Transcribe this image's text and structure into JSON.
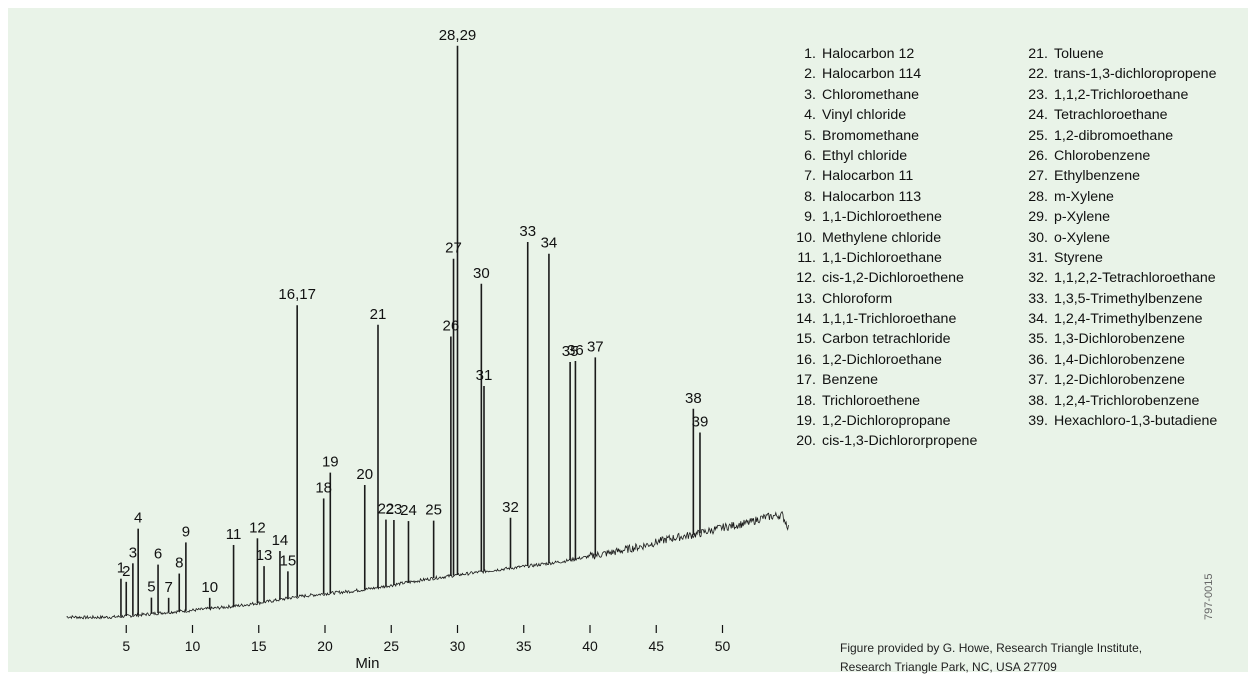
{
  "chart_data": {
    "type": "line",
    "title": "",
    "xlabel": "Min",
    "ylabel": "",
    "xlim": [
      0.5,
      55
    ],
    "xticks": [
      5,
      10,
      15,
      20,
      25,
      30,
      35,
      40,
      45,
      50
    ],
    "grid": false,
    "baseline": [
      [
        0.5,
        0.9
      ],
      [
        2,
        0.7
      ],
      [
        4,
        0.8
      ],
      [
        6,
        1.4
      ],
      [
        8,
        2.1
      ],
      [
        10,
        2.7
      ],
      [
        12,
        3.4
      ],
      [
        14,
        4.2
      ],
      [
        16,
        5.3
      ],
      [
        18,
        6.5
      ],
      [
        20,
        7.3
      ],
      [
        22,
        8.0
      ],
      [
        24,
        9.0
      ],
      [
        26,
        10.3
      ],
      [
        28,
        11.5
      ],
      [
        30,
        12.5
      ],
      [
        32,
        13.5
      ],
      [
        34,
        14.4
      ],
      [
        36,
        15.3
      ],
      [
        38,
        16.3
      ],
      [
        40,
        17.7
      ],
      [
        42,
        19.0
      ],
      [
        44,
        20.6
      ],
      [
        46,
        22.6
      ],
      [
        48,
        23.8
      ],
      [
        50,
        25.7
      ],
      [
        52,
        27.0
      ],
      [
        53,
        28.4
      ],
      [
        54.5,
        29.2
      ],
      [
        55,
        25.5
      ]
    ],
    "peaks": [
      {
        "label": "1",
        "x": 4.6,
        "height": 10.5
      },
      {
        "label": "2",
        "x": 5.0,
        "height": 9.5
      },
      {
        "label": "3",
        "x": 5.5,
        "height": 14.5
      },
      {
        "label": "4",
        "x": 5.9,
        "height": 24.0
      },
      {
        "label": "5",
        "x": 6.9,
        "height": 4.5
      },
      {
        "label": "6",
        "x": 7.4,
        "height": 13.5
      },
      {
        "label": "7",
        "x": 8.2,
        "height": 4.0
      },
      {
        "label": "8",
        "x": 9.0,
        "height": 10.5
      },
      {
        "label": "9",
        "x": 9.5,
        "height": 19.0
      },
      {
        "label": "10",
        "x": 11.3,
        "height": 3.0
      },
      {
        "label": "11",
        "x": 13.1,
        "height": 17.0
      },
      {
        "label": "12",
        "x": 14.9,
        "height": 18.0
      },
      {
        "label": "13",
        "x": 15.4,
        "height": 10.0
      },
      {
        "label": "14",
        "x": 16.6,
        "height": 13.5
      },
      {
        "label": "15",
        "x": 17.2,
        "height": 7.5
      },
      {
        "label": "16,17",
        "x": 17.9,
        "height": 81.0
      },
      {
        "label": "18",
        "x": 19.9,
        "height": 26.5
      },
      {
        "label": "19",
        "x": 20.4,
        "height": 33.5
      },
      {
        "label": "20",
        "x": 23.0,
        "height": 29.0
      },
      {
        "label": "21",
        "x": 24.0,
        "height": 73.0
      },
      {
        "label": "22",
        "x": 24.6,
        "height": 18.5
      },
      {
        "label": "23",
        "x": 25.2,
        "height": 18.0
      },
      {
        "label": "24",
        "x": 26.3,
        "height": 17.0
      },
      {
        "label": "25",
        "x": 28.2,
        "height": 16.0
      },
      {
        "label": "26",
        "x": 29.5,
        "height": 66.5
      },
      {
        "label": "27",
        "x": 29.7,
        "height": 88.0
      },
      {
        "label": "28,29",
        "x": 30.0,
        "height": 147.0
      },
      {
        "label": "30",
        "x": 31.8,
        "height": 80.0
      },
      {
        "label": "31",
        "x": 32.0,
        "height": 51.5
      },
      {
        "label": "32",
        "x": 34.0,
        "height": 14.0
      },
      {
        "label": "33",
        "x": 35.3,
        "height": 90.0
      },
      {
        "label": "34",
        "x": 36.9,
        "height": 86.0
      },
      {
        "label": "35",
        "x": 38.5,
        "height": 55.0
      },
      {
        "label": "36",
        "x": 38.9,
        "height": 55.0
      },
      {
        "label": "37",
        "x": 40.4,
        "height": 55.0
      },
      {
        "label": "38",
        "x": 47.8,
        "height": 35.0
      },
      {
        "label": "39",
        "x": 48.3,
        "height": 28.0
      }
    ],
    "legend": [
      {
        "num": "1.",
        "name": "Halocarbon 12"
      },
      {
        "num": "2.",
        "name": "Halocarbon 114"
      },
      {
        "num": "3.",
        "name": "Chloromethane"
      },
      {
        "num": "4.",
        "name": "Vinyl chloride"
      },
      {
        "num": "5.",
        "name": "Bromomethane"
      },
      {
        "num": "6.",
        "name": "Ethyl chloride"
      },
      {
        "num": "7.",
        "name": "Halocarbon 11"
      },
      {
        "num": "8.",
        "name": "Halocarbon 113"
      },
      {
        "num": "9.",
        "name": "1,1-Dichloroethene"
      },
      {
        "num": "10.",
        "name": "Methylene chloride"
      },
      {
        "num": "11.",
        "name": "1,1-Dichloroethane"
      },
      {
        "num": "12.",
        "name": "cis-1,2-Dichloroethene"
      },
      {
        "num": "13.",
        "name": "Chloroform"
      },
      {
        "num": "14.",
        "name": "1,1,1-Trichloroethane"
      },
      {
        "num": "15.",
        "name": "Carbon tetrachloride"
      },
      {
        "num": "16.",
        "name": "1,2-Dichloroethane"
      },
      {
        "num": "17.",
        "name": "Benzene"
      },
      {
        "num": "18.",
        "name": "Trichloroethene"
      },
      {
        "num": "19.",
        "name": "1,2-Dichloropropane"
      },
      {
        "num": "20.",
        "name": "cis-1,3-Dichlororpropene"
      },
      {
        "num": "21.",
        "name": "Toluene"
      },
      {
        "num": "22.",
        "name": "trans-1,3-dichloropropene"
      },
      {
        "num": "23.",
        "name": "1,1,2-Trichloroethane"
      },
      {
        "num": "24.",
        "name": "Tetrachloroethane"
      },
      {
        "num": "25.",
        "name": "1,2-dibromoethane"
      },
      {
        "num": "26.",
        "name": "Chlorobenzene"
      },
      {
        "num": "27.",
        "name": "Ethylbenzene"
      },
      {
        "num": "28.",
        "name": "m-Xylene"
      },
      {
        "num": "29.",
        "name": "p-Xylene"
      },
      {
        "num": "30.",
        "name": "o-Xylene"
      },
      {
        "num": "31.",
        "name": "Styrene"
      },
      {
        "num": "32.",
        "name": "1,1,2,2-Tetrachloroethane"
      },
      {
        "num": "33.",
        "name": "1,3,5-Trimethylbenzene"
      },
      {
        "num": "34.",
        "name": "1,2,4-Trimethylbenzene"
      },
      {
        "num": "35.",
        "name": "1,3-Dichlorobenzene"
      },
      {
        "num": "36.",
        "name": "1,4-Dichlorobenzene"
      },
      {
        "num": "37.",
        "name": "1,2-Dichlorobenzene"
      },
      {
        "num": "38.",
        "name": "1,2,4-Trichlorobenzene"
      },
      {
        "num": "39.",
        "name": "Hexachloro-1,3-butadiene"
      }
    ]
  },
  "credit": {
    "line1": "Figure provided by G. Howe, Research Triangle Institute,",
    "line2": "Research Triangle Park, NC, USA 27709"
  },
  "figure_code": "797-0015",
  "colors": {
    "background": "#e9f3e8",
    "trace": "#1a1a1a"
  }
}
